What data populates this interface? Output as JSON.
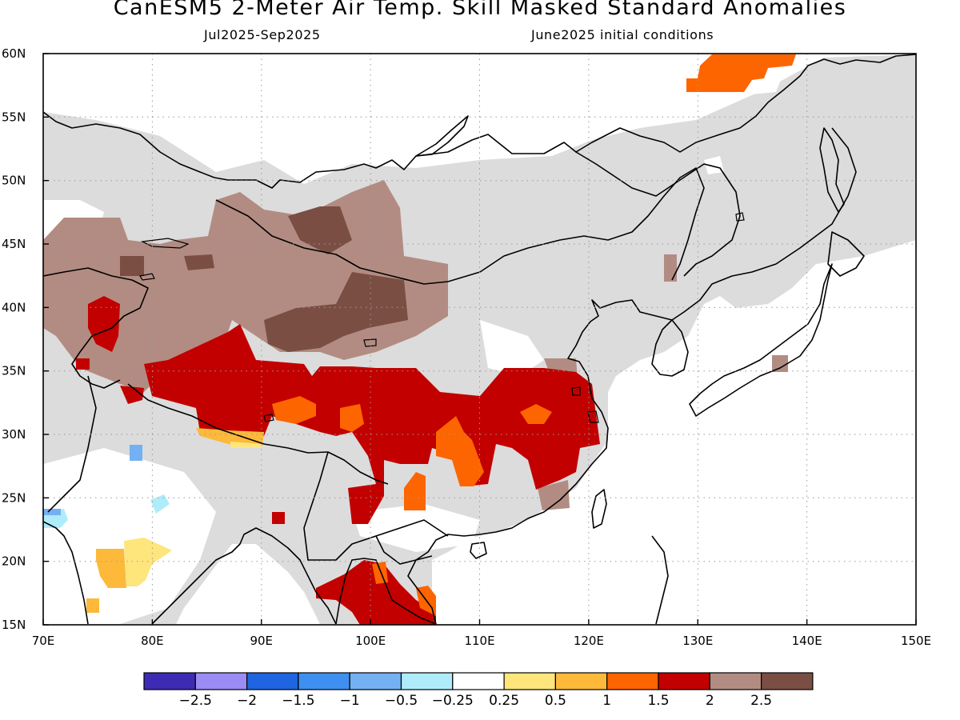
{
  "title": "CanESM5 2-Meter Air Temp. Skill Masked Standard Anomalies",
  "subtitle_left": "Jul2025-Sep2025",
  "subtitle_right": "June2025 initial conditions",
  "map": {
    "lon_range": [
      70,
      150
    ],
    "lat_range": [
      15,
      60
    ],
    "lat_ticks": [
      "15N",
      "20N",
      "25N",
      "30N",
      "35N",
      "40N",
      "45N",
      "50N",
      "55N",
      "60N"
    ],
    "lon_ticks": [
      "70E",
      "80E",
      "90E",
      "100E",
      "110E",
      "120E",
      "130E",
      "140E",
      "150E"
    ],
    "grid": "dotted",
    "masked_color": "#dcdcdc"
  },
  "colorbar": {
    "colors": [
      "#3e2bb3",
      "#9a8cf2",
      "#1f64e0",
      "#3f8ff0",
      "#74b1f2",
      "#afecfa",
      "#ffffff",
      "#fee57c",
      "#fdb93a",
      "#fd6500",
      "#c20000",
      "#b28c82",
      "#7b4e44"
    ],
    "labels": [
      "-2.5",
      "-2",
      "-1.5",
      "-1",
      "-0.5",
      "-0.25",
      "0.25",
      "0.5",
      "1",
      "1.5",
      "2",
      "2.5"
    ]
  },
  "colors": {
    "land_gray": "#dcdcdc",
    "brown_light": "#b28c82",
    "brown_dark": "#7b4e44",
    "red": "#c20000",
    "orange": "#fd6500",
    "light_orange": "#fdb93a",
    "yellow": "#fee57c",
    "light_blue": "#afecfa",
    "blue": "#74b1f2"
  }
}
